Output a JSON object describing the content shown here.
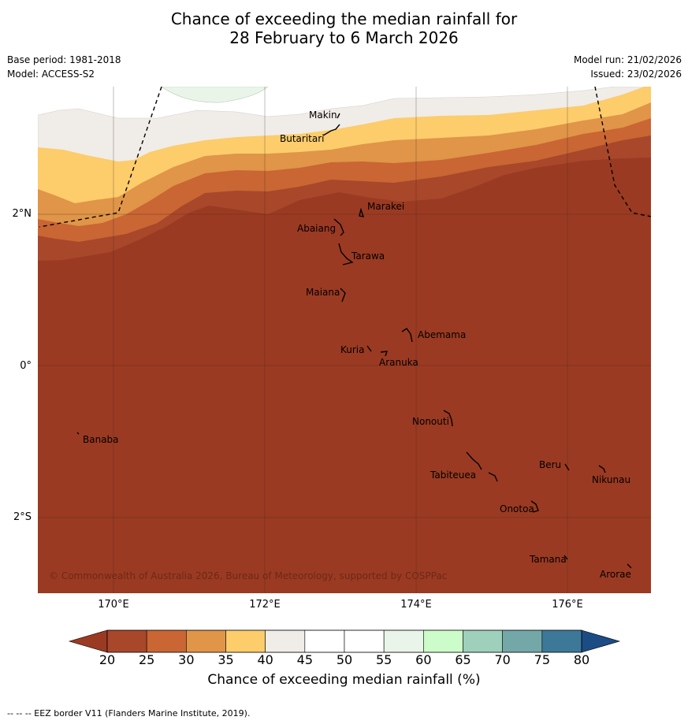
{
  "title_line1": "Chance of exceeding the median rainfall for",
  "title_line2": "28 February to 6 March 2026",
  "base_period": "Base period: 1981-2018",
  "model": "Model: ACCESS-S2",
  "model_run": "Model run: 21/02/2026",
  "issued": "Issued: 23/02/2026",
  "axes": {
    "y_ticks": [
      "2°N",
      "0°",
      "2°S"
    ],
    "x_ticks": [
      "170°E",
      "172°E",
      "174°E",
      "176°E"
    ]
  },
  "places": [
    "Makin",
    "Butaritari",
    "Marakei",
    "Abaiang",
    "Tarawa",
    "Maiana",
    "Abemama",
    "Kuria",
    "Aranuka",
    "Nonouti",
    "Banaba",
    "Beru",
    "Nikunau",
    "Tabiteuea",
    "Onotoa",
    "Tamana",
    "Arorae"
  ],
  "copyright": "© Commonwealth of Australia 2026, Bureau of Meteorology, supported by COSPPac",
  "colorbar": {
    "labels": [
      "20",
      "25",
      "30",
      "35",
      "40",
      "45",
      "50",
      "55",
      "60",
      "65",
      "70",
      "75",
      "80"
    ],
    "colors": [
      "#a9472b",
      "#c96634",
      "#e09548",
      "#fdcc6b",
      "#f0ece7",
      "#ffffff",
      "#ffffff",
      "#eaf5e9",
      "#ccfcc9",
      "#9ed0bc",
      "#74a8a8",
      "#3d7899",
      "#1b4c84"
    ],
    "under_color": "#9b3a22",
    "title": "Chance of exceeding median rainfall (%)"
  },
  "footnote": "--  --  -- EEZ border V11 (Flanders Marine Institute, 2019)."
}
